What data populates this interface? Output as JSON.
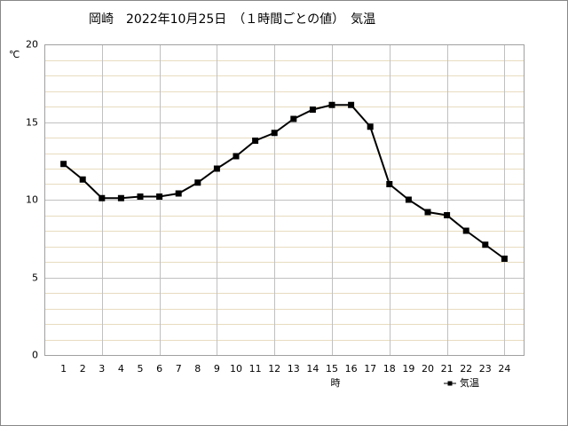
{
  "chart_data": {
    "type": "line",
    "title": "岡崎　2022年10月25日　（１時間ごとの値）　気温",
    "y_label": "℃",
    "x_label": "時",
    "x": [
      1,
      2,
      3,
      4,
      5,
      6,
      7,
      8,
      9,
      10,
      11,
      12,
      13,
      14,
      15,
      16,
      17,
      18,
      19,
      20,
      21,
      22,
      23,
      24
    ],
    "series": [
      {
        "name": "気温",
        "color": "#000000",
        "values": [
          12.3,
          11.3,
          10.1,
          10.1,
          10.2,
          10.2,
          10.4,
          11.1,
          12.0,
          12.8,
          13.8,
          14.3,
          15.2,
          15.8,
          16.1,
          16.1,
          14.7,
          11.0,
          10.0,
          9.2,
          9.0,
          8.0,
          7.1,
          6.2
        ]
      }
    ],
    "xlim": [
      0,
      25
    ],
    "xticks": [
      1,
      2,
      3,
      4,
      5,
      6,
      7,
      8,
      9,
      10,
      11,
      12,
      13,
      14,
      15,
      16,
      17,
      18,
      19,
      20,
      21,
      22,
      23,
      24
    ],
    "x_gridlines": [
      3,
      6,
      9,
      12,
      15,
      18,
      21,
      24
    ],
    "ylim": [
      0,
      20
    ],
    "yticks": [
      0,
      5,
      10,
      15,
      20
    ],
    "y_minor_gridlines": [
      1,
      2,
      3,
      4,
      6,
      7,
      8,
      9,
      11,
      12,
      13,
      14,
      16,
      17,
      18,
      19
    ],
    "grid": true,
    "legend": "bottom-right"
  }
}
